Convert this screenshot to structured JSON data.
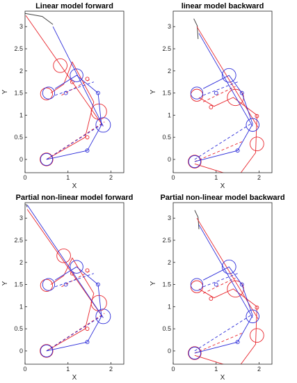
{
  "colors": {
    "model_a": "#e8232a",
    "model_b": "#2b2bd9",
    "path": "#444444",
    "axis": "#222222"
  },
  "chart_data": [
    {
      "type": "line",
      "title": "Linear model forward",
      "xlabel": "X",
      "ylabel": "Y",
      "xlim": [
        0,
        2.3
      ],
      "ylim": [
        -0.3,
        3.35
      ],
      "xticks": [
        "0",
        "1",
        "2"
      ],
      "yticks": [
        "0",
        "0.5",
        "1",
        "1.5",
        "2",
        "2.5",
        "3"
      ],
      "grid": false,
      "path": [
        [
          0,
          3.3
        ],
        [
          0.4,
          3.23
        ],
        [
          0.65,
          3.05
        ]
      ],
      "red": {
        "lines": [
          [
            [
              0.02,
              3.25
            ],
            [
              1.82,
              0.75
            ]
          ],
          [
            [
              0.5,
              0
            ],
            [
              1.4,
              0.5
            ],
            [
              1.6,
              1.3
            ],
            [
              1.1,
              2.2
            ],
            [
              0.9,
              1.7
            ],
            [
              0.6,
              1.5
            ]
          ]
        ],
        "dashed": [
          [
            [
              0.5,
              0
            ],
            [
              1.85,
              0.85
            ]
          ],
          [
            [
              0.85,
              1.45
            ],
            [
              1.5,
              1.8
            ]
          ]
        ],
        "circles": [
          [
            0.5,
            0,
            0.15
          ],
          [
            0.82,
            2.12,
            0.16
          ],
          [
            1.72,
            1.08,
            0.18
          ],
          [
            1.45,
            0.5,
            0.04
          ],
          [
            1.1,
            1.75,
            0.04
          ],
          [
            1.45,
            1.82,
            0.04
          ],
          [
            0.5,
            1.48,
            0.14
          ]
        ]
      },
      "blue": {
        "lines": [
          [
            [
              0.65,
              3.0
            ],
            [
              1.82,
              0.75
            ]
          ],
          [
            [
              0.5,
              0
            ],
            [
              1.45,
              0.2
            ],
            [
              1.78,
              0.78
            ],
            [
              1.7,
              1.5
            ],
            [
              1.2,
              1.9
            ],
            [
              0.7,
              1.6
            ]
          ]
        ],
        "dashed": [
          [
            [
              0.5,
              0
            ],
            [
              1.8,
              0.8
            ]
          ],
          [
            [
              0.7,
              1.45
            ],
            [
              1.6,
              1.75
            ]
          ]
        ],
        "circles": [
          [
            0.5,
            0,
            0.14
          ],
          [
            1.2,
            1.9,
            0.15
          ],
          [
            1.82,
            0.78,
            0.17
          ],
          [
            1.45,
            0.2,
            0.04
          ],
          [
            1.7,
            1.5,
            0.04
          ],
          [
            0.95,
            1.5,
            0.04
          ],
          [
            0.55,
            1.5,
            0.14
          ]
        ]
      }
    },
    {
      "type": "line",
      "title": "linear model backward",
      "xlabel": "X",
      "ylabel": "Y",
      "xlim": [
        0,
        2.3
      ],
      "ylim": [
        -0.3,
        3.35
      ],
      "xticks": [
        "0",
        "1",
        "2"
      ],
      "yticks": [
        "0",
        "0.5",
        "1",
        "1.5",
        "2",
        "2.5",
        "3"
      ],
      "grid": false,
      "path": [
        [
          0.48,
          3.18
        ],
        [
          0.56,
          3.02
        ],
        [
          0.58,
          2.72
        ]
      ],
      "red": {
        "lines": [
          [
            [
              0.55,
              3.0
            ],
            [
              1.98,
              0.72
            ]
          ],
          [
            [
              0.5,
              -0.1
            ],
            [
              1.5,
              -0.4
            ],
            [
              1.92,
              0.15
            ],
            [
              1.95,
              1.0
            ],
            [
              1.4,
              1.4
            ],
            [
              0.95,
              1.2
            ],
            [
              0.6,
              1.4
            ]
          ]
        ],
        "dashed": [
          [
            [
              0.5,
              -0.05
            ],
            [
              1.6,
              0.4
            ]
          ],
          [
            [
              0.7,
              1.3
            ],
            [
              1.45,
              1.65
            ]
          ]
        ],
        "circles": [
          [
            0.5,
            -0.05,
            0.15
          ],
          [
            1.45,
            1.4,
            0.19
          ],
          [
            1.95,
            0.35,
            0.16
          ],
          [
            1.5,
            -0.4,
            0.04
          ],
          [
            1.95,
            0.98,
            0.04
          ],
          [
            0.88,
            1.18,
            0.04
          ],
          [
            0.55,
            1.45,
            0.14
          ]
        ]
      },
      "blue": {
        "lines": [
          [
            [
              0.6,
              2.85
            ],
            [
              1.85,
              0.75
            ]
          ],
          [
            [
              0.5,
              -0.05
            ],
            [
              1.5,
              0.2
            ],
            [
              1.85,
              0.8
            ],
            [
              1.6,
              1.5
            ],
            [
              1.3,
              1.9
            ],
            [
              0.7,
              1.6
            ]
          ]
        ],
        "dashed": [
          [
            [
              0.5,
              0
            ],
            [
              1.8,
              0.8
            ]
          ],
          [
            [
              0.7,
              1.45
            ],
            [
              1.5,
              1.75
            ]
          ]
        ],
        "circles": [
          [
            0.5,
            -0.05,
            0.14
          ],
          [
            1.3,
            1.9,
            0.16
          ],
          [
            1.85,
            0.78,
            0.15
          ],
          [
            1.5,
            0.2,
            0.04
          ],
          [
            1.6,
            1.5,
            0.04
          ],
          [
            1.0,
            1.5,
            0.04
          ],
          [
            0.55,
            1.5,
            0.14
          ]
        ]
      }
    },
    {
      "type": "line",
      "title": "Partial non-linear model forward",
      "xlabel": "X",
      "ylabel": "Y",
      "xlim": [
        0,
        2.3
      ],
      "ylim": [
        -0.3,
        3.35
      ],
      "xticks": [
        "0",
        "1",
        "2"
      ],
      "yticks": [
        "0",
        "0.5",
        "1",
        "1.5",
        "2",
        "2.5",
        "3"
      ],
      "grid": false,
      "path": [
        [
          0.02,
          3.32
        ],
        [
          0.05,
          3.25
        ]
      ],
      "red": {
        "lines": [
          [
            [
              0.05,
              3.2
            ],
            [
              1.82,
              0.75
            ]
          ],
          [
            [
              0.5,
              0
            ],
            [
              1.4,
              0.5
            ],
            [
              1.6,
              1.3
            ],
            [
              1.1,
              2.1
            ],
            [
              0.9,
              1.7
            ],
            [
              0.6,
              1.5
            ]
          ]
        ],
        "dashed": [
          [
            [
              0.5,
              0
            ],
            [
              1.85,
              0.85
            ]
          ],
          [
            [
              0.85,
              1.45
            ],
            [
              1.5,
              1.8
            ]
          ]
        ],
        "circles": [
          [
            0.5,
            0,
            0.15
          ],
          [
            0.9,
            2.15,
            0.16
          ],
          [
            1.72,
            1.08,
            0.18
          ],
          [
            1.45,
            0.5,
            0.04
          ],
          [
            1.1,
            1.75,
            0.04
          ],
          [
            1.45,
            1.82,
            0.04
          ],
          [
            0.5,
            1.48,
            0.14
          ]
        ]
      },
      "blue": {
        "lines": [
          [
            [
              0.05,
              3.3
            ],
            [
              1.82,
              0.75
            ]
          ],
          [
            [
              0.5,
              0
            ],
            [
              1.45,
              0.2
            ],
            [
              1.78,
              0.78
            ],
            [
              1.7,
              1.5
            ],
            [
              1.2,
              1.9
            ],
            [
              0.7,
              1.6
            ]
          ]
        ],
        "dashed": [
          [
            [
              0.5,
              0
            ],
            [
              1.8,
              0.8
            ]
          ],
          [
            [
              0.7,
              1.45
            ],
            [
              1.6,
              1.75
            ]
          ]
        ],
        "circles": [
          [
            0.5,
            0,
            0.14
          ],
          [
            1.2,
            1.9,
            0.15
          ],
          [
            1.82,
            0.78,
            0.17
          ],
          [
            1.45,
            0.2,
            0.04
          ],
          [
            1.7,
            1.5,
            0.04
          ],
          [
            0.95,
            1.5,
            0.04
          ],
          [
            0.55,
            1.5,
            0.14
          ]
        ]
      }
    },
    {
      "type": "line",
      "title": "Partial non-linear model backward",
      "xlabel": "X",
      "ylabel": "Y",
      "xlim": [
        0,
        2.3
      ],
      "ylim": [
        -0.3,
        3.35
      ],
      "xticks": [
        "0",
        "1",
        "2"
      ],
      "yticks": [
        "0",
        "0.5",
        "1",
        "1.5",
        "2",
        "2.5",
        "3"
      ],
      "grid": false,
      "path": [
        [
          0.5,
          3.18
        ],
        [
          0.58,
          3.02
        ],
        [
          0.6,
          2.75
        ]
      ],
      "red": {
        "lines": [
          [
            [
              0.55,
              3.0
            ],
            [
              1.98,
              0.72
            ]
          ],
          [
            [
              0.5,
              -0.1
            ],
            [
              1.5,
              -0.4
            ],
            [
              1.92,
              0.15
            ],
            [
              1.95,
              1.0
            ],
            [
              1.4,
              1.4
            ],
            [
              0.95,
              1.2
            ],
            [
              0.6,
              1.4
            ]
          ]
        ],
        "dashed": [
          [
            [
              0.5,
              -0.05
            ],
            [
              1.6,
              0.4
            ]
          ],
          [
            [
              0.7,
              1.3
            ],
            [
              1.45,
              1.65
            ]
          ]
        ],
        "circles": [
          [
            0.5,
            -0.05,
            0.15
          ],
          [
            1.45,
            1.4,
            0.19
          ],
          [
            1.95,
            0.35,
            0.16
          ],
          [
            1.5,
            -0.4,
            0.04
          ],
          [
            1.95,
            0.98,
            0.04
          ],
          [
            0.88,
            1.18,
            0.04
          ],
          [
            0.55,
            1.45,
            0.14
          ]
        ]
      },
      "blue": {
        "lines": [
          [
            [
              0.6,
              2.85
            ],
            [
              1.85,
              0.75
            ]
          ],
          [
            [
              0.5,
              -0.05
            ],
            [
              1.5,
              0.2
            ],
            [
              1.85,
              0.8
            ],
            [
              1.6,
              1.5
            ],
            [
              1.3,
              1.9
            ],
            [
              0.7,
              1.6
            ]
          ]
        ],
        "dashed": [
          [
            [
              0.5,
              0
            ],
            [
              1.8,
              0.8
            ]
          ],
          [
            [
              0.7,
              1.45
            ],
            [
              1.5,
              1.75
            ]
          ]
        ],
        "circles": [
          [
            0.5,
            -0.05,
            0.14
          ],
          [
            1.3,
            1.9,
            0.16
          ],
          [
            1.85,
            0.78,
            0.15
          ],
          [
            1.5,
            0.2,
            0.04
          ],
          [
            1.6,
            1.5,
            0.04
          ],
          [
            1.0,
            1.5,
            0.04
          ],
          [
            0.55,
            1.5,
            0.14
          ]
        ]
      }
    }
  ]
}
